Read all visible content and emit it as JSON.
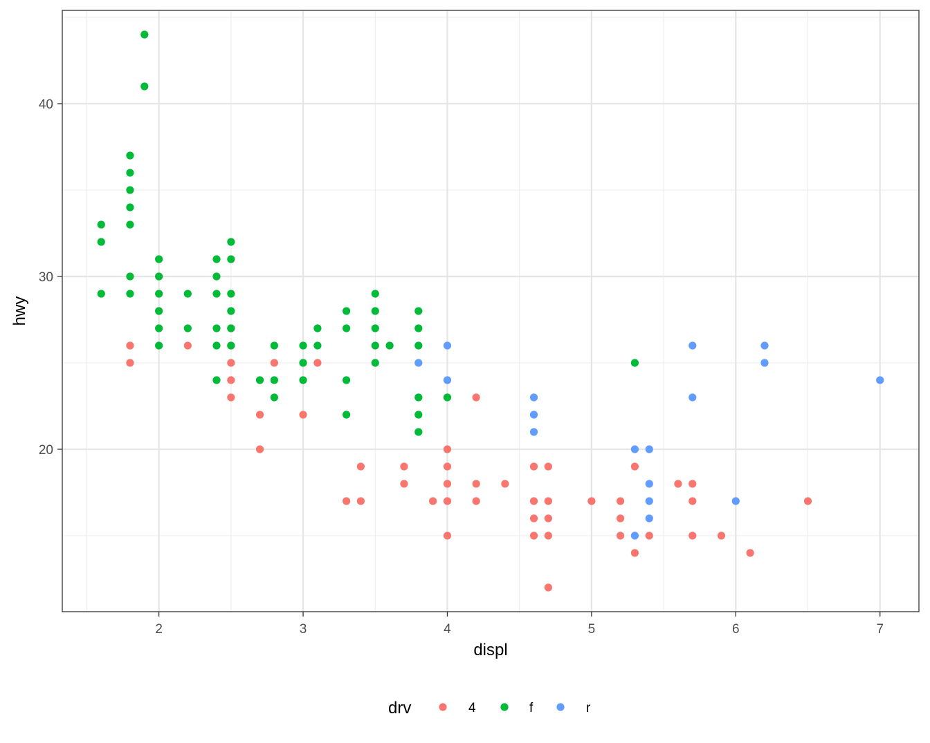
{
  "chart_data": {
    "type": "scatter",
    "title": "",
    "xlabel": "displ",
    "ylabel": "hwy",
    "xlim": [
      1.33,
      7.27
    ],
    "ylim": [
      10.6,
      45.4
    ],
    "x_ticks": [
      2,
      3,
      4,
      5,
      6,
      7
    ],
    "y_ticks": [
      20,
      30,
      40
    ],
    "x_minor_ticks": [
      1.5,
      2.5,
      3.5,
      4.5,
      5.5,
      6.5
    ],
    "y_minor_ticks": [
      15,
      25,
      35,
      45
    ],
    "grid": true,
    "legend": {
      "title": "drv",
      "position": "bottom"
    },
    "series": [
      {
        "name": "4",
        "color": "#F8766D",
        "points": [
          [
            1.8,
            26
          ],
          [
            1.8,
            25
          ],
          [
            2.2,
            26
          ],
          [
            2.5,
            27
          ],
          [
            2.5,
            26
          ],
          [
            2.5,
            25
          ],
          [
            2.5,
            24
          ],
          [
            2.5,
            23
          ],
          [
            2.7,
            22
          ],
          [
            2.7,
            20
          ],
          [
            2.8,
            25
          ],
          [
            3.0,
            22
          ],
          [
            3.1,
            25
          ],
          [
            3.3,
            17
          ],
          [
            3.4,
            19
          ],
          [
            3.4,
            17
          ],
          [
            3.7,
            19
          ],
          [
            3.7,
            18
          ],
          [
            3.9,
            17
          ],
          [
            4.0,
            20
          ],
          [
            4.0,
            19
          ],
          [
            4.0,
            18
          ],
          [
            4.0,
            17
          ],
          [
            4.0,
            15
          ],
          [
            4.2,
            23
          ],
          [
            4.2,
            18
          ],
          [
            4.2,
            17
          ],
          [
            4.4,
            18
          ],
          [
            4.6,
            19
          ],
          [
            4.6,
            17
          ],
          [
            4.6,
            16
          ],
          [
            4.6,
            15
          ],
          [
            4.7,
            19
          ],
          [
            4.7,
            17
          ],
          [
            4.7,
            16
          ],
          [
            4.7,
            15
          ],
          [
            4.7,
            12
          ],
          [
            5.0,
            17
          ],
          [
            5.2,
            17
          ],
          [
            5.2,
            16
          ],
          [
            5.2,
            15
          ],
          [
            5.3,
            19
          ],
          [
            5.3,
            14
          ],
          [
            5.4,
            15
          ],
          [
            5.6,
            18
          ],
          [
            5.7,
            18
          ],
          [
            5.7,
            17
          ],
          [
            5.7,
            15
          ],
          [
            5.9,
            15
          ],
          [
            6.1,
            14
          ],
          [
            6.5,
            17
          ]
        ]
      },
      {
        "name": "f",
        "color": "#00BA38",
        "points": [
          [
            1.6,
            33
          ],
          [
            1.6,
            32
          ],
          [
            1.6,
            29
          ],
          [
            1.8,
            37
          ],
          [
            1.8,
            36
          ],
          [
            1.8,
            35
          ],
          [
            1.8,
            34
          ],
          [
            1.8,
            33
          ],
          [
            1.8,
            30
          ],
          [
            1.8,
            29
          ],
          [
            1.9,
            44
          ],
          [
            1.9,
            41
          ],
          [
            2.0,
            31
          ],
          [
            2.0,
            30
          ],
          [
            2.0,
            29
          ],
          [
            2.0,
            28
          ],
          [
            2.0,
            27
          ],
          [
            2.0,
            26
          ],
          [
            2.2,
            29
          ],
          [
            2.2,
            27
          ],
          [
            2.4,
            31
          ],
          [
            2.4,
            30
          ],
          [
            2.4,
            29
          ],
          [
            2.4,
            27
          ],
          [
            2.4,
            26
          ],
          [
            2.4,
            24
          ],
          [
            2.5,
            32
          ],
          [
            2.5,
            31
          ],
          [
            2.5,
            29
          ],
          [
            2.5,
            28
          ],
          [
            2.5,
            27
          ],
          [
            2.5,
            26
          ],
          [
            2.7,
            24
          ],
          [
            2.8,
            26
          ],
          [
            2.8,
            24
          ],
          [
            2.8,
            23
          ],
          [
            3.0,
            26
          ],
          [
            3.0,
            25
          ],
          [
            3.0,
            24
          ],
          [
            3.1,
            27
          ],
          [
            3.1,
            26
          ],
          [
            3.3,
            28
          ],
          [
            3.3,
            27
          ],
          [
            3.3,
            24
          ],
          [
            3.3,
            22
          ],
          [
            3.5,
            29
          ],
          [
            3.5,
            28
          ],
          [
            3.5,
            27
          ],
          [
            3.5,
            26
          ],
          [
            3.5,
            25
          ],
          [
            3.6,
            26
          ],
          [
            3.8,
            28
          ],
          [
            3.8,
            27
          ],
          [
            3.8,
            26
          ],
          [
            3.8,
            23
          ],
          [
            3.8,
            22
          ],
          [
            3.8,
            21
          ],
          [
            4.0,
            23
          ],
          [
            5.3,
            25
          ]
        ]
      },
      {
        "name": "r",
        "color": "#619CFF",
        "points": [
          [
            3.8,
            25
          ],
          [
            4.0,
            26
          ],
          [
            4.0,
            24
          ],
          [
            4.6,
            23
          ],
          [
            4.6,
            22
          ],
          [
            4.6,
            21
          ],
          [
            5.3,
            20
          ],
          [
            5.3,
            15
          ],
          [
            5.4,
            20
          ],
          [
            5.4,
            18
          ],
          [
            5.4,
            17
          ],
          [
            5.4,
            16
          ],
          [
            5.7,
            26
          ],
          [
            5.7,
            23
          ],
          [
            6.0,
            17
          ],
          [
            6.2,
            26
          ],
          [
            6.2,
            25
          ],
          [
            7.0,
            24
          ]
        ]
      }
    ]
  }
}
